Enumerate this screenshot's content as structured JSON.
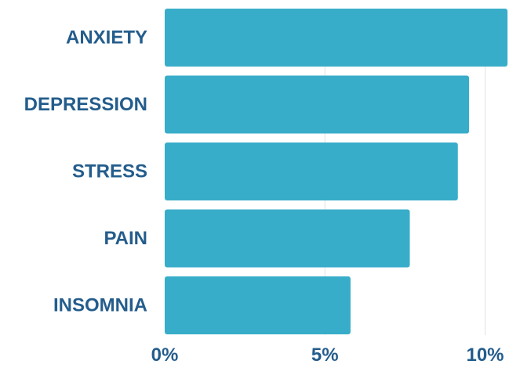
{
  "chart_data": {
    "type": "bar",
    "orientation": "horizontal",
    "categories": [
      "ANXIETY",
      "DEPRESSION",
      "STRESS",
      "PAIN",
      "INSOMNIA"
    ],
    "values": [
      10.7,
      9.5,
      9.15,
      7.65,
      5.8
    ],
    "xlim": [
      0,
      11
    ],
    "x_ticks": [
      {
        "value": 0,
        "label": "0%"
      },
      {
        "value": 5,
        "label": "5%"
      },
      {
        "value": 10,
        "label": "10%"
      }
    ],
    "grid": true,
    "legend": "none",
    "title": "",
    "xlabel": "",
    "ylabel": ""
  },
  "colors": {
    "bar": "#38adc9",
    "label": "#245d8c",
    "grid": "#e3e3e3"
  }
}
